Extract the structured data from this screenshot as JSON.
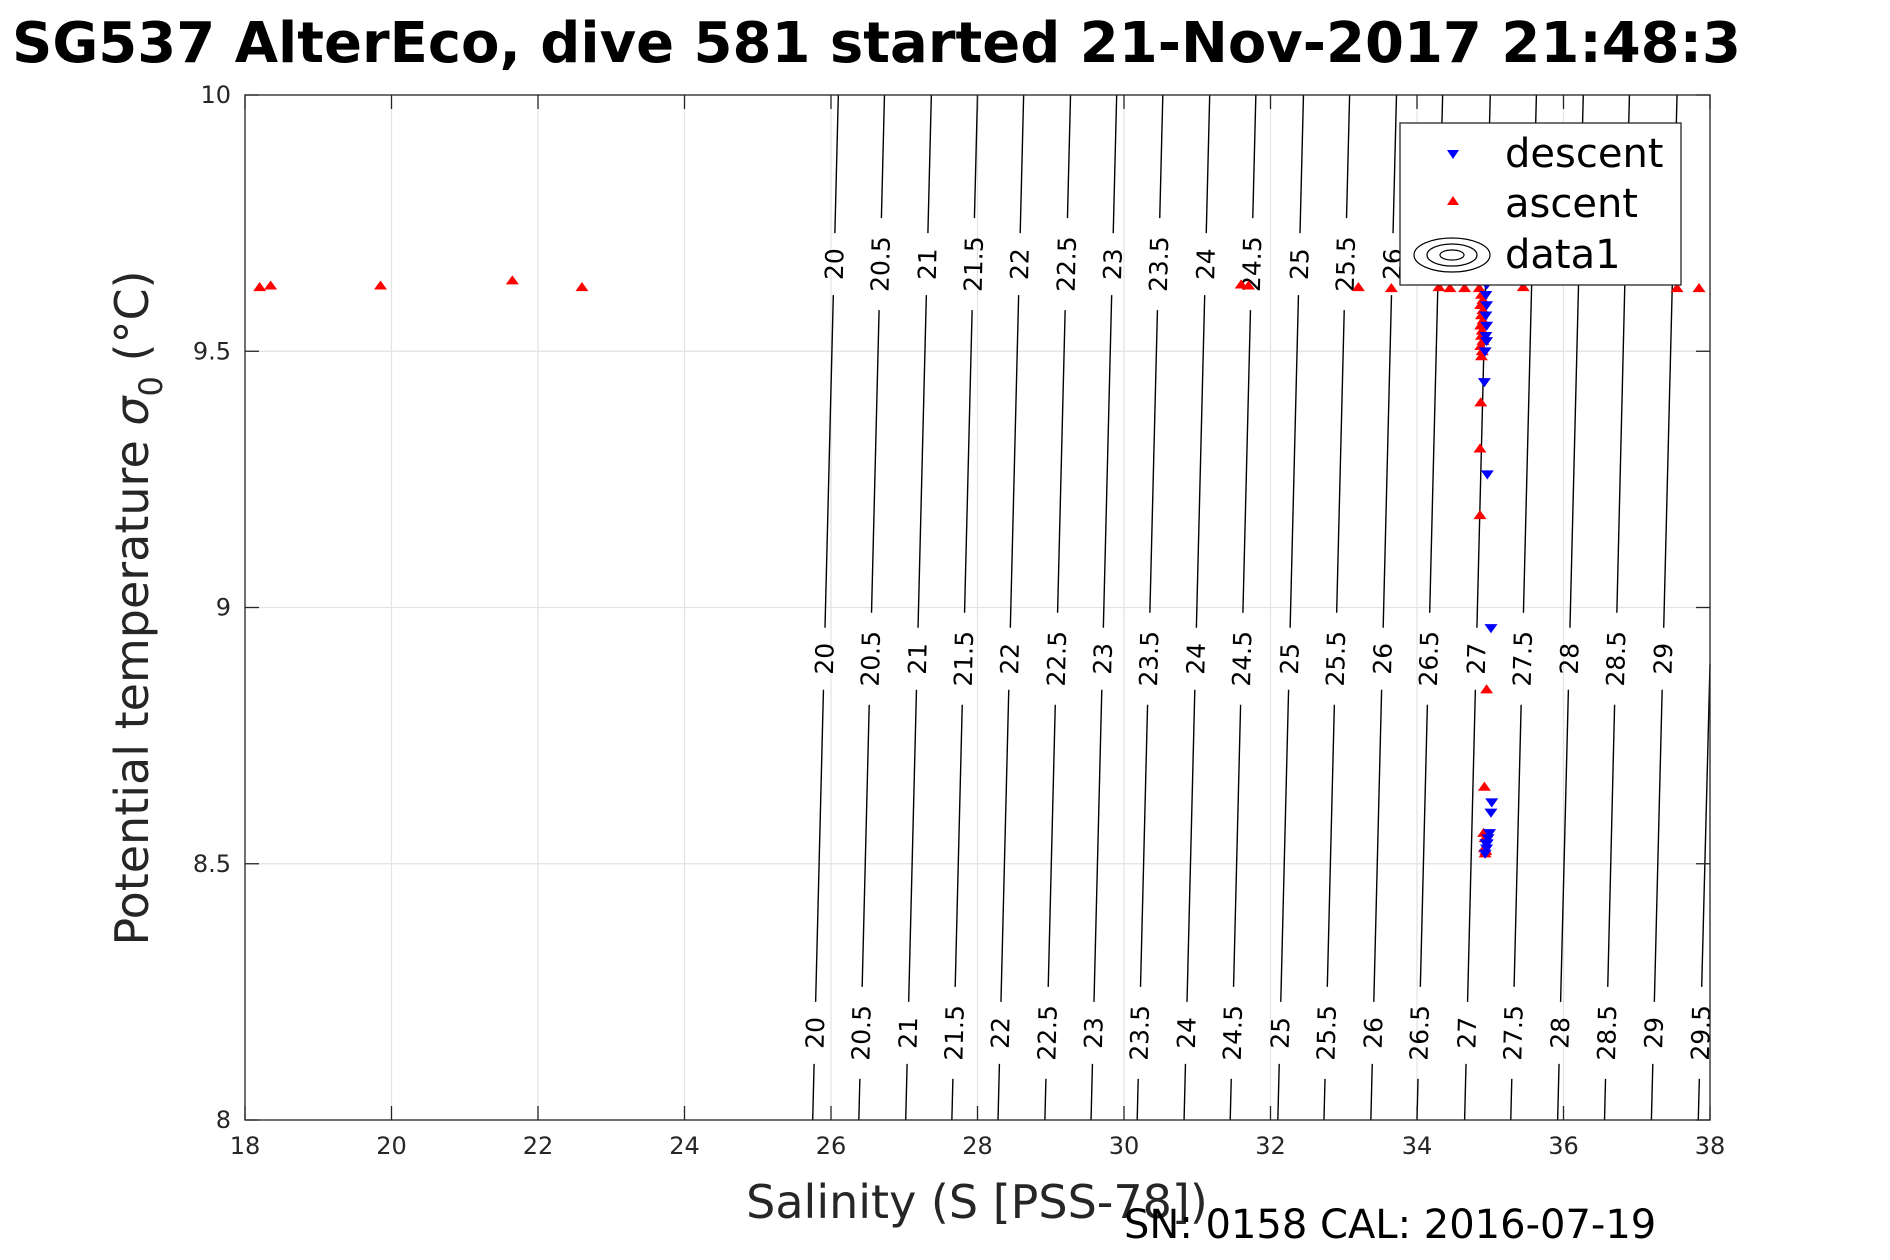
{
  "chart_data": {
    "type": "scatter",
    "title": "SG537 AlterEco, dive 581 started 21-Nov-2017 21:48:3",
    "xlabel": "Salinity (S [PSS-78])",
    "ylabel_main": "Potential temperature ",
    "ylabel_symbol": "σ",
    "ylabel_subscript": "0",
    "ylabel_unit": " (°C)",
    "xlim": [
      18,
      38
    ],
    "ylim": [
      8,
      10
    ],
    "xticks": [
      "18",
      "20",
      "22",
      "24",
      "26",
      "28",
      "30",
      "32",
      "34",
      "36",
      "38"
    ],
    "yticks": [
      "8",
      "8.5",
      "9",
      "9.5",
      "10"
    ],
    "grid": true,
    "legend_position": "top-right",
    "footnote": "SN: 0158  CAL: 2016-07-19",
    "series": [
      {
        "name": "descent",
        "marker": "triangle-down",
        "color": "#0000ff",
        "points": [
          [
            34.95,
            9.63
          ],
          [
            34.94,
            9.61
          ],
          [
            34.95,
            9.59
          ],
          [
            34.94,
            9.57
          ],
          [
            34.95,
            9.55
          ],
          [
            34.94,
            9.53
          ],
          [
            34.95,
            9.52
          ],
          [
            34.93,
            9.5
          ],
          [
            34.92,
            9.44
          ],
          [
            34.96,
            9.26
          ],
          [
            35.01,
            8.96
          ],
          [
            35.02,
            8.62
          ],
          [
            35.01,
            8.6
          ],
          [
            34.99,
            8.56
          ],
          [
            34.97,
            8.55
          ],
          [
            34.96,
            8.54
          ],
          [
            34.94,
            8.54
          ],
          [
            34.95,
            8.53
          ],
          [
            34.93,
            8.52
          ]
        ]
      },
      {
        "name": "ascent",
        "marker": "triangle-up",
        "color": "#ff0000",
        "points": [
          [
            18.2,
            9.625
          ],
          [
            18.35,
            9.628
          ],
          [
            19.85,
            9.628
          ],
          [
            21.65,
            9.638
          ],
          [
            22.6,
            9.625
          ],
          [
            31.6,
            9.63
          ],
          [
            31.7,
            9.628
          ],
          [
            33.2,
            9.625
          ],
          [
            33.65,
            9.623
          ],
          [
            34.3,
            9.625
          ],
          [
            34.45,
            9.623
          ],
          [
            34.65,
            9.623
          ],
          [
            34.85,
            9.623
          ],
          [
            34.88,
            9.61
          ],
          [
            34.9,
            9.6
          ],
          [
            34.87,
            9.59
          ],
          [
            34.9,
            9.58
          ],
          [
            34.88,
            9.57
          ],
          [
            34.9,
            9.56
          ],
          [
            34.87,
            9.55
          ],
          [
            34.89,
            9.54
          ],
          [
            34.88,
            9.53
          ],
          [
            34.9,
            9.52
          ],
          [
            34.87,
            9.51
          ],
          [
            34.89,
            9.5
          ],
          [
            34.88,
            9.49
          ],
          [
            34.87,
            9.4
          ],
          [
            34.86,
            9.31
          ],
          [
            34.86,
            9.18
          ],
          [
            34.95,
            8.84
          ],
          [
            34.92,
            8.65
          ],
          [
            34.91,
            8.56
          ],
          [
            34.93,
            8.55
          ],
          [
            34.92,
            8.53
          ],
          [
            34.93,
            8.52
          ],
          [
            34.94,
            8.525
          ],
          [
            35.45,
            9.625
          ],
          [
            37.55,
            9.623
          ],
          [
            37.85,
            9.623
          ]
        ]
      },
      {
        "name": "data1",
        "marker": "contour",
        "color": "#000000",
        "contour_levels": [
          "20",
          "20.5",
          "21",
          "21.5",
          "22",
          "22.5",
          "23",
          "23.5",
          "24",
          "24.5",
          "25",
          "25.5",
          "26",
          "26.5",
          "27",
          "27.5",
          "28",
          "28.5",
          "29",
          "29.5"
        ],
        "contour_x_at_bottom": [
          25.75,
          26.38,
          27.02,
          27.65,
          28.28,
          28.92,
          29.55,
          30.18,
          30.82,
          31.45,
          32.1,
          32.73,
          33.37,
          34.0,
          34.65,
          35.28,
          35.92,
          36.56,
          37.2,
          37.84
        ],
        "contour_x_at_top": [
          26.1,
          26.73,
          27.37,
          28.0,
          28.63,
          29.27,
          29.9,
          30.53,
          31.17,
          31.8,
          32.45,
          33.08,
          33.72,
          34.35,
          35.0,
          35.63,
          36.27,
          36.9,
          37.55,
          38.2
        ],
        "labels_at_top": [
          "20",
          "20.5",
          "21",
          "21.5",
          "22",
          "22.5",
          "23",
          "23.5",
          "24",
          "24.5",
          "25",
          "25.5",
          "26",
          "",
          "",
          "",
          "",
          "",
          "",
          ""
        ],
        "labels_at_middle": [
          "20",
          "20.5",
          "21",
          "21.5",
          "22",
          "22.5",
          "23",
          "23.5",
          "24",
          "24.5",
          "25",
          "25.5",
          "26",
          "26.5",
          "27",
          "27.5",
          "28",
          "28.5",
          "29",
          ""
        ],
        "labels_at_bottom": [
          "20",
          "20.5",
          "21",
          "21.5",
          "22",
          "22.5",
          "23",
          "23.5",
          "24",
          "24.5",
          "25",
          "25.5",
          "26",
          "26.5",
          "27",
          "27.5",
          "28",
          "28.5",
          "29",
          "29.5"
        ]
      }
    ]
  }
}
